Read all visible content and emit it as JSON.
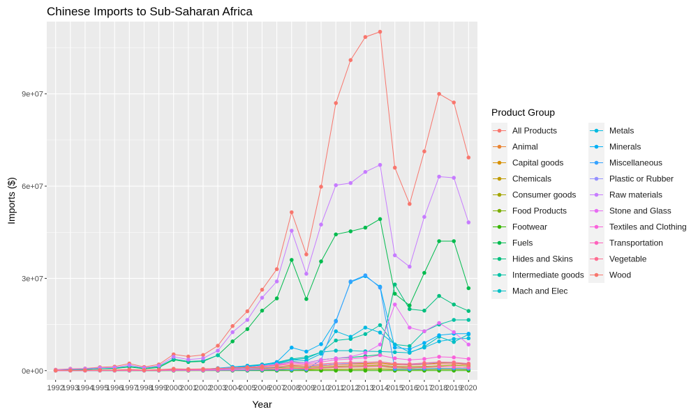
{
  "chart_data": {
    "type": "line",
    "title": "Chinese Imports to Sub-Saharan Africa",
    "xlabel": "Year",
    "ylabel": "Imports ($)",
    "ylim": [
      -3000000,
      113500000
    ],
    "xlim": [
      1991.4,
      2020.6
    ],
    "y_ticks": [
      0,
      30000000,
      60000000,
      90000000
    ],
    "y_tick_labels": [
      "0e+00",
      "3e+07",
      "6e+07",
      "9e+07"
    ],
    "x": [
      1992,
      1993,
      1994,
      1995,
      1996,
      1997,
      1998,
      1999,
      2000,
      2001,
      2002,
      2003,
      2004,
      2005,
      2006,
      2007,
      2008,
      2009,
      2010,
      2011,
      2012,
      2013,
      2014,
      2015,
      2016,
      2017,
      2018,
      2019,
      2020
    ],
    "x_tick_labels": [
      "1992",
      "1993",
      "1994",
      "1995",
      "1996",
      "1997",
      "1998",
      "1999",
      "2000",
      "2001",
      "2002",
      "2003",
      "2004",
      "2005",
      "2006",
      "2007",
      "2008",
      "2009",
      "2010",
      "2011",
      "2012",
      "2013",
      "2014",
      "2015",
      "2016",
      "2017",
      "2018",
      "2019",
      "2020"
    ],
    "grid": true,
    "legend": {
      "title": "Product Group",
      "placement": "right"
    },
    "series": [
      {
        "name": "All Products",
        "color": "#F8766D",
        "values": [
          300000,
          600000,
          700000,
          1100000,
          1300000,
          2300000,
          1200000,
          2000000,
          5300000,
          4600000,
          5100000,
          8100000,
          14500000,
          19300000,
          26300000,
          33000000,
          51500000,
          37800000,
          59800000,
          87000000,
          101000000,
          108500000,
          110200000,
          66000000,
          54200000,
          71300000,
          90000000,
          87200000,
          69300000
        ]
      },
      {
        "name": "Animal",
        "color": "#EA8331",
        "values": [
          0,
          10000,
          10000,
          20000,
          20000,
          30000,
          20000,
          30000,
          40000,
          40000,
          50000,
          60000,
          80000,
          100000,
          150000,
          200000,
          280000,
          250000,
          350000,
          450000,
          500000,
          550000,
          600000,
          500000,
          450000,
          550000,
          650000,
          600000,
          500000
        ]
      },
      {
        "name": "Capital goods",
        "color": "#D89000",
        "values": [
          50000,
          100000,
          120000,
          150000,
          180000,
          250000,
          150000,
          200000,
          300000,
          300000,
          350000,
          450000,
          600000,
          800000,
          1000000,
          1200000,
          1700000,
          1400000,
          1800000,
          2200000,
          2300000,
          2300000,
          2500000,
          2000000,
          1800000,
          2000000,
          2500000,
          2500000,
          2000000
        ]
      },
      {
        "name": "Chemicals",
        "color": "#C09B00",
        "values": [
          10000,
          20000,
          20000,
          30000,
          40000,
          50000,
          30000,
          40000,
          80000,
          70000,
          80000,
          120000,
          200000,
          280000,
          350000,
          400000,
          700000,
          500000,
          800000,
          1000000,
          1100000,
          1200000,
          1300000,
          900000,
          800000,
          1000000,
          1200000,
          1200000,
          1000000
        ]
      },
      {
        "name": "Consumer goods",
        "color": "#A3A500",
        "values": [
          50000,
          100000,
          100000,
          150000,
          150000,
          250000,
          150000,
          200000,
          300000,
          300000,
          350000,
          450000,
          550000,
          650000,
          750000,
          900000,
          1100000,
          1000000,
          1200000,
          1400000,
          1500000,
          1600000,
          1700000,
          1400000,
          1300000,
          1400000,
          1600000,
          1700000,
          1500000
        ]
      },
      {
        "name": "Food Products",
        "color": "#7CAE00",
        "values": [
          10000,
          20000,
          20000,
          30000,
          30000,
          40000,
          30000,
          40000,
          60000,
          60000,
          70000,
          90000,
          120000,
          150000,
          180000,
          200000,
          300000,
          250000,
          300000,
          350000,
          400000,
          400000,
          450000,
          350000,
          300000,
          350000,
          400000,
          400000,
          350000
        ]
      },
      {
        "name": "Footwear",
        "color": "#39B600",
        "values": [
          0,
          0,
          0,
          0,
          0,
          0,
          0,
          0,
          0,
          0,
          0,
          0,
          0,
          0,
          0,
          0,
          0,
          0,
          0,
          0,
          0,
          0,
          0,
          0,
          0,
          0,
          0,
          0,
          0
        ]
      },
      {
        "name": "Fuels",
        "color": "#00BB4E",
        "values": [
          100000,
          300000,
          400000,
          600000,
          700000,
          1200000,
          600000,
          1000000,
          3500000,
          2800000,
          3000000,
          5000000,
          9500000,
          13500000,
          19500000,
          23500000,
          36000000,
          23300000,
          35500000,
          44300000,
          45300000,
          46500000,
          49300000,
          25000000,
          21200000,
          31800000,
          42100000,
          42100000,
          26800000
        ]
      },
      {
        "name": "Hides and Skins",
        "color": "#00BF7D",
        "values": [
          50000,
          100000,
          100000,
          150000,
          150000,
          250000,
          150000,
          200000,
          400000,
          350000,
          350000,
          500000,
          700000,
          900000,
          1500000,
          2000000,
          3000000,
          2500000,
          3500000,
          4000000,
          4300000,
          4700000,
          5200000,
          28000000,
          20000000,
          19500000,
          24300000,
          21500000,
          19400000
        ]
      },
      {
        "name": "Intermediate goods",
        "color": "#00C1A3",
        "values": [
          100000,
          300000,
          400000,
          600000,
          800000,
          1400000,
          800000,
          1300000,
          3800000,
          3000000,
          3200000,
          5000000,
          1200000,
          1600000,
          2000000,
          2700000,
          3800000,
          4400000,
          6000000,
          9800000,
          10300000,
          11900000,
          14800000,
          8500000,
          8000000,
          12800000,
          15000000,
          16500000,
          16500000
        ]
      },
      {
        "name": "Mach and Elec",
        "color": "#00BFC4",
        "values": [
          10000,
          50000,
          60000,
          80000,
          100000,
          150000,
          100000,
          120000,
          200000,
          200000,
          250000,
          400000,
          700000,
          1000000,
          1500000,
          2200000,
          3500000,
          4000000,
          6000000,
          6500000,
          6500000,
          6300000,
          6200000,
          6000000,
          5800000,
          7800000,
          11000000,
          9300000,
          11800000
        ]
      },
      {
        "name": "Metals",
        "color": "#00BAE0",
        "values": [
          20000,
          50000,
          60000,
          80000,
          100000,
          150000,
          100000,
          120000,
          300000,
          250000,
          300000,
          500000,
          900000,
          1300000,
          1800000,
          2500000,
          3500000,
          3200000,
          5500000,
          12800000,
          11000000,
          14000000,
          12400000,
          8500000,
          6000000,
          7500000,
          9500000,
          10300000,
          10500000
        ]
      },
      {
        "name": "Minerals",
        "color": "#00B0F6",
        "values": [
          30000,
          60000,
          70000,
          100000,
          120000,
          200000,
          120000,
          180000,
          500000,
          400000,
          500000,
          800000,
          1200000,
          1500000,
          1800000,
          2800000,
          7500000,
          6200000,
          8600000,
          16200000,
          28800000,
          30700000,
          27300000,
          7500000,
          7000000,
          9000000,
          11500000,
          12000000,
          12000000
        ]
      },
      {
        "name": "Miscellaneous",
        "color": "#35A2FF",
        "values": [
          0,
          10000,
          10000,
          20000,
          20000,
          30000,
          20000,
          30000,
          50000,
          50000,
          60000,
          80000,
          100000,
          150000,
          200000,
          250000,
          300000,
          300000,
          3500000,
          16000000,
          29000000,
          31000000,
          27000000,
          500000,
          400000,
          600000,
          700000,
          700000,
          600000
        ]
      },
      {
        "name": "Plastic or Rubber",
        "color": "#9590FF",
        "values": [
          10000,
          30000,
          40000,
          60000,
          80000,
          120000,
          80000,
          100000,
          200000,
          200000,
          250000,
          350000,
          500000,
          700000,
          900000,
          1100000,
          1500000,
          1400000,
          1800000,
          2200000,
          2400000,
          2600000,
          2800000,
          2300000,
          2000000,
          2300000,
          2700000,
          2600000,
          2200000
        ]
      },
      {
        "name": "Raw materials",
        "color": "#C77CFF",
        "values": [
          200000,
          500000,
          600000,
          900000,
          1000000,
          1800000,
          900000,
          1600000,
          4500000,
          3600000,
          4000000,
          6500000,
          12500000,
          16500000,
          23700000,
          29000000,
          45500000,
          31500000,
          47500000,
          60300000,
          61000000,
          64600000,
          66900000,
          37500000,
          33800000,
          50000000,
          63100000,
          62700000,
          48200000
        ]
      },
      {
        "name": "Stone and Glass",
        "color": "#E76BF3",
        "values": [
          10000,
          30000,
          40000,
          60000,
          80000,
          150000,
          80000,
          120000,
          400000,
          300000,
          350000,
          500000,
          700000,
          1000000,
          1500000,
          2000000,
          2800000,
          2500000,
          3500000,
          4000000,
          4500000,
          5800000,
          8500000,
          21500000,
          14000000,
          12800000,
          15500000,
          12500000,
          8500000
        ]
      },
      {
        "name": "Textiles and Clothing",
        "color": "#FA62DB",
        "values": [
          20000,
          50000,
          60000,
          80000,
          100000,
          150000,
          100000,
          150000,
          300000,
          300000,
          350000,
          500000,
          800000,
          1100000,
          1400000,
          1800000,
          2500000,
          2200000,
          2800000,
          3500000,
          3800000,
          4200000,
          5000000,
          4000000,
          3500000,
          3800000,
          4500000,
          4300000,
          3800000
        ]
      },
      {
        "name": "Transportation",
        "color": "#FF62BC",
        "values": [
          10000,
          20000,
          20000,
          30000,
          30000,
          50000,
          30000,
          50000,
          100000,
          100000,
          120000,
          180000,
          250000,
          350000,
          450000,
          550000,
          800000,
          700000,
          900000,
          1100000,
          1200000,
          1300000,
          1400000,
          1200000,
          1000000,
          1100000,
          1300000,
          1200000,
          1000000
        ]
      },
      {
        "name": "Vegetable",
        "color": "#FF6C91",
        "values": [
          30000,
          80000,
          100000,
          150000,
          180000,
          300000,
          150000,
          250000,
          500000,
          450000,
          500000,
          700000,
          900000,
          1100000,
          1400000,
          1700000,
          2000000,
          1800000,
          2200000,
          2500000,
          2600000,
          2700000,
          2900000,
          2300000,
          2200000,
          2500000,
          2800000,
          2700000,
          2300000
        ]
      },
      {
        "name": "Wood",
        "color": "#F8766D",
        "values": [
          50000,
          100000,
          150000,
          200000,
          250000,
          400000,
          200000,
          300000,
          600000,
          500000,
          550000,
          700000,
          800000,
          950000,
          1100000,
          1300000,
          1500000,
          1300000,
          1600000,
          1800000,
          1900000,
          2000000,
          2100000,
          1900000,
          1800000,
          2000000,
          2200000,
          2100000,
          1900000
        ]
      }
    ]
  }
}
